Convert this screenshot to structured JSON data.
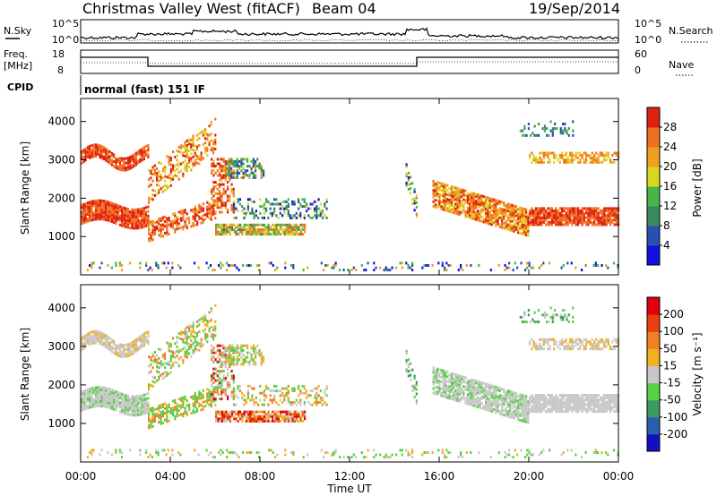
{
  "header": {
    "title": "Christmas Valley West (fitACF)",
    "beam": "Beam 04",
    "date": "19/Sep/2014"
  },
  "nsky_panel": {
    "left_label": "N.Sky",
    "right_label": "N.Search",
    "left_ticks": [
      "10^5",
      "10^0"
    ],
    "right_ticks": [
      "10^5",
      "10^0"
    ]
  },
  "freq_panel": {
    "left_label_1": "Freq.",
    "left_label_2": "[MHz]",
    "right_label": "Nave",
    "left_ticks": [
      "18",
      "8"
    ],
    "right_ticks": [
      "60",
      "0"
    ]
  },
  "cpid": {
    "label": "CPID",
    "value": "normal (fast) 151 IF"
  },
  "chart_data": [
    {
      "type": "heatmap",
      "name": "power",
      "ylabel": "Slant Range [km]",
      "ylim": [
        0,
        4600
      ],
      "yticks": [
        "1000",
        "2000",
        "3000",
        "4000"
      ],
      "colorbar_label": "Power [dB]",
      "colorbar_ticks": [
        "4",
        "8",
        "12",
        "16",
        "20",
        "24",
        "28"
      ],
      "colors": [
        "#1010e0",
        "#2a4fb0",
        "#3a8a60",
        "#46b64a",
        "#d8d820",
        "#f0a020",
        "#f07020",
        "#e02010"
      ]
    },
    {
      "type": "heatmap",
      "name": "velocity",
      "ylabel": "Slant Range [km]",
      "ylim": [
        0,
        4600
      ],
      "yticks": [
        "1000",
        "2000",
        "3000",
        "4000"
      ],
      "colorbar_label": "Velocity [m s⁻¹]",
      "colorbar_ticks": [
        "200",
        "100",
        "50",
        "15",
        "-15",
        "-50",
        "-100",
        "-200"
      ],
      "colors": [
        "#1010c0",
        "#2a5fb0",
        "#3a9a60",
        "#5ad048",
        "#c8c8c8",
        "#f0b020",
        "#f08020",
        "#e84010",
        "#e00010"
      ]
    }
  ],
  "xaxis": {
    "label": "Time UT",
    "ticks": [
      "00:00",
      "04:00",
      "08:00",
      "12:00",
      "16:00",
      "20:00",
      "00:00"
    ]
  }
}
